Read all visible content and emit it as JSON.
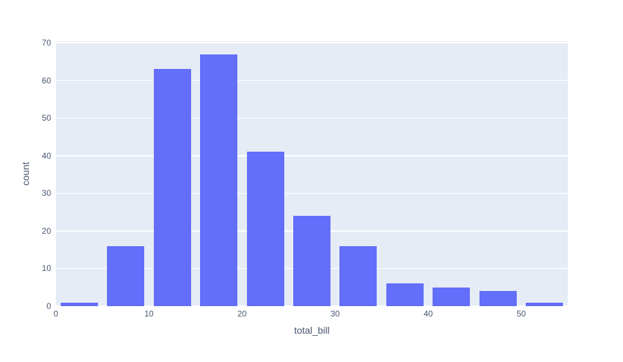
{
  "chart_data": {
    "type": "bar",
    "subtype": "histogram",
    "title": "",
    "xlabel": "total_bill",
    "ylabel": "count",
    "bin_start": 0,
    "bin_size": 5,
    "bin_edges": [
      0,
      5,
      10,
      15,
      20,
      25,
      30,
      35,
      40,
      45,
      50,
      55
    ],
    "counts": [
      1,
      16,
      63,
      67,
      41,
      24,
      16,
      6,
      5,
      4,
      1
    ],
    "x_ticks": [
      0,
      10,
      20,
      30,
      40,
      50
    ],
    "y_ticks": [
      0,
      10,
      20,
      30,
      40,
      50,
      60,
      70
    ],
    "xlim": [
      0,
      55
    ],
    "ylim": [
      0,
      70.4
    ],
    "grid": "horizontal-only",
    "legend": "none",
    "bar_width_fraction": 0.8,
    "colors": {
      "bar": "#636efa",
      "plot_background": "#e5ecf6",
      "gridline": "#ffffff",
      "text": "#47566f",
      "page_background": "#ffffff"
    }
  }
}
